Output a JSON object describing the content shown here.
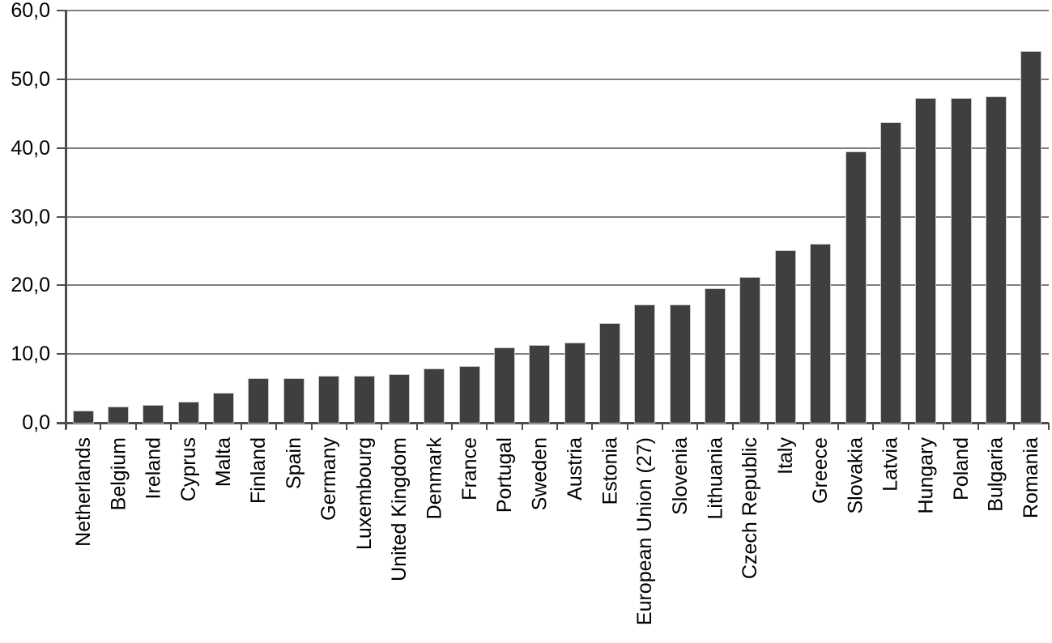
{
  "chart_data": {
    "type": "bar",
    "title": "",
    "xlabel": "",
    "ylabel": "",
    "categories": [
      "Netherlands",
      "Belgium",
      "Ireland",
      "Cyprus",
      "Malta",
      "Finland",
      "Spain",
      "Germany",
      "Luxembourg",
      "United Kingdom",
      "Denmark",
      "France",
      "Portugal",
      "Sweden",
      "Austria",
      "Estonia",
      "European Union (27)",
      "Slovenia",
      "Lithuania",
      "Czech Republic",
      "Italy",
      "Greece",
      "Slovakia",
      "Latvia",
      "Hungary",
      "Poland",
      "Bulgaria",
      "Romania"
    ],
    "values": [
      1.7,
      2.2,
      2.5,
      3.0,
      4.2,
      6.4,
      6.4,
      6.7,
      6.7,
      7.0,
      7.8,
      8.1,
      10.9,
      11.2,
      11.5,
      14.4,
      17.1,
      17.1,
      19.5,
      21.1,
      25.0,
      25.9,
      39.4,
      43.6,
      47.1,
      47.1,
      47.4,
      54.0
    ],
    "ylim": [
      0,
      60
    ],
    "ytick_step": 10,
    "ytick_labels": [
      "0,0",
      "10,0",
      "20,0",
      "30,0",
      "40,0",
      "50,0",
      "60,0"
    ],
    "decimal_separator": ",",
    "grid": "horizontal",
    "legend": "none",
    "label_rotation_deg": -90,
    "colors": {
      "bar": "#3f3f3f",
      "bar_edge": "#c9c9c9",
      "axis": "#4d4d4d",
      "gridline": "#7f7f7f",
      "background": "#ffffff",
      "text": "#000000"
    }
  }
}
